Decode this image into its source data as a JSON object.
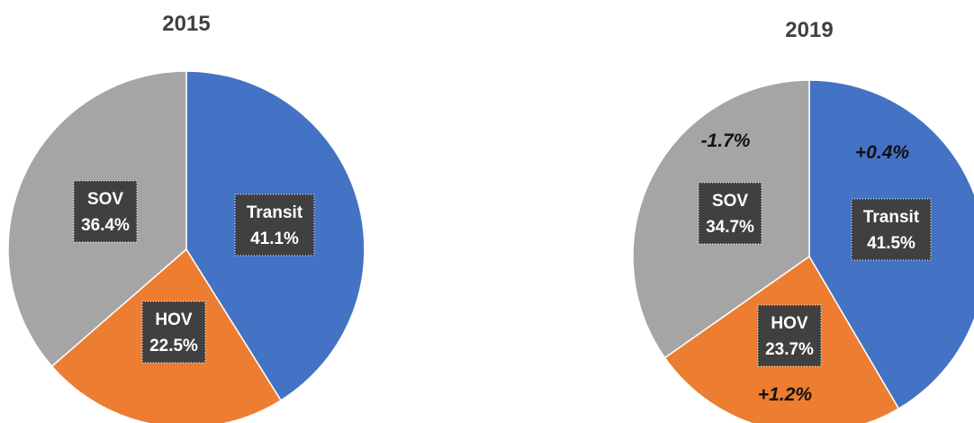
{
  "chart_data": [
    {
      "type": "pie",
      "title": "2015",
      "colors": [
        "#4472C4",
        "#ED7D31",
        "#A5A5A5"
      ],
      "slices": [
        {
          "name": "Transit",
          "value": 41.1,
          "label": "41.1%"
        },
        {
          "name": "HOV",
          "value": 22.5,
          "label": "22.5%"
        },
        {
          "name": "SOV",
          "value": 36.4,
          "label": "36.4%"
        }
      ]
    },
    {
      "type": "pie",
      "title": "2019",
      "colors": [
        "#4472C4",
        "#ED7D31",
        "#A5A5A5"
      ],
      "slices": [
        {
          "name": "Transit",
          "value": 41.5,
          "label": "41.5%",
          "change": "+0.4%"
        },
        {
          "name": "HOV",
          "value": 23.7,
          "label": "23.7%",
          "change": "+1.2%"
        },
        {
          "name": "SOV",
          "value": 34.7,
          "label": "34.7%",
          "change": "-1.7%"
        }
      ]
    }
  ]
}
